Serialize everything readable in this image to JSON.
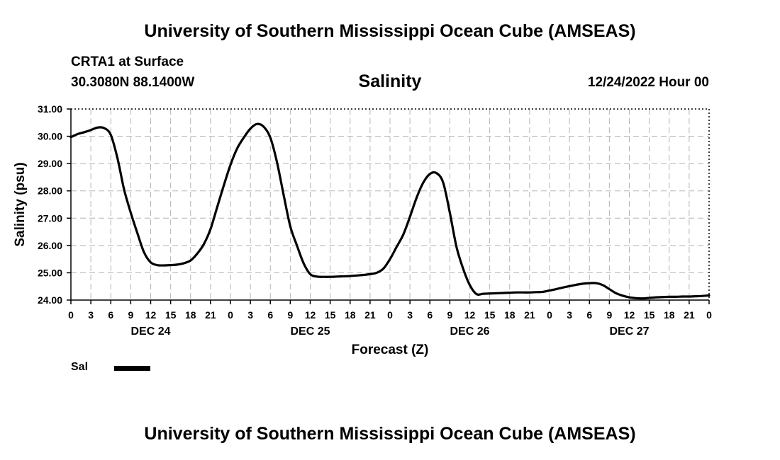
{
  "header": {
    "title_top": "University of Southern Mississippi Ocean Cube (AMSEAS)",
    "station": "CRTA1 at Surface",
    "coords": "30.3080N  88.1400W",
    "variable": "Salinity",
    "datetime": "12/24/2022 Hour 00",
    "title_bottom": "University of Southern Mississippi Ocean Cube (AMSEAS)"
  },
  "legend": {
    "label": "Sal",
    "line_color": "#000000"
  },
  "chart_data": {
    "type": "line",
    "title": "Salinity",
    "xlabel": "Forecast (Z)",
    "ylabel": "Salinity (psu)",
    "ylim": [
      24.0,
      31.0
    ],
    "xlim": [
      0,
      96
    ],
    "grid": true,
    "yticks": [
      "24.00",
      "25.00",
      "26.00",
      "27.00",
      "28.00",
      "29.00",
      "30.00",
      "31.00"
    ],
    "xtick_labels": [
      "0",
      "3",
      "6",
      "9",
      "12",
      "15",
      "18",
      "21",
      "0",
      "3",
      "6",
      "9",
      "12",
      "15",
      "18",
      "21",
      "0",
      "3",
      "6",
      "9",
      "12",
      "15",
      "18",
      "21",
      "0",
      "3",
      "6",
      "9",
      "12",
      "15",
      "18",
      "21",
      "0"
    ],
    "day_labels": [
      {
        "label": "DEC 24",
        "hour": 12
      },
      {
        "label": "DEC 25",
        "hour": 36
      },
      {
        "label": "DEC 26",
        "hour": 60
      },
      {
        "label": "DEC 27",
        "hour": 84
      }
    ],
    "series": [
      {
        "name": "Sal",
        "x": [
          0,
          1,
          2,
          3,
          4,
          5,
          6,
          7,
          8,
          9,
          10,
          11,
          12,
          13,
          14,
          15,
          16,
          17,
          18,
          19,
          20,
          21,
          22,
          23,
          24,
          25,
          26,
          27,
          28,
          29,
          30,
          31,
          32,
          33,
          34,
          35,
          36,
          37,
          38,
          39,
          40,
          41,
          42,
          43,
          44,
          45,
          46,
          47,
          48,
          49,
          50,
          51,
          52,
          53,
          54,
          55,
          56,
          57,
          58,
          59,
          60,
          61,
          62,
          63,
          64,
          65,
          66,
          67,
          68,
          69,
          70,
          71,
          72,
          73,
          74,
          75,
          76,
          77,
          78,
          79,
          80,
          81,
          82,
          83,
          84,
          85,
          86,
          87,
          88,
          89,
          90,
          91,
          92,
          93,
          94,
          95,
          96
        ],
        "values": [
          29.97,
          30.08,
          30.15,
          30.23,
          30.32,
          30.3,
          30.05,
          29.2,
          28.05,
          27.2,
          26.45,
          25.75,
          25.38,
          25.28,
          25.27,
          25.28,
          25.3,
          25.35,
          25.45,
          25.7,
          26.05,
          26.6,
          27.4,
          28.2,
          28.95,
          29.55,
          29.95,
          30.28,
          30.45,
          30.35,
          29.95,
          29.05,
          27.85,
          26.7,
          26.0,
          25.35,
          24.95,
          24.86,
          24.85,
          24.85,
          24.86,
          24.87,
          24.88,
          24.9,
          24.92,
          24.95,
          25.0,
          25.15,
          25.5,
          25.95,
          26.4,
          27.05,
          27.75,
          28.3,
          28.62,
          28.65,
          28.3,
          27.2,
          25.95,
          25.15,
          24.55,
          24.22,
          24.23,
          24.24,
          24.25,
          24.26,
          24.27,
          24.28,
          24.28,
          24.28,
          24.29,
          24.3,
          24.35,
          24.4,
          24.46,
          24.51,
          24.56,
          24.6,
          24.62,
          24.62,
          24.55,
          24.4,
          24.25,
          24.16,
          24.1,
          24.07,
          24.06,
          24.08,
          24.1,
          24.11,
          24.12,
          24.12,
          24.13,
          24.13,
          24.14,
          24.15,
          24.17
        ]
      }
    ]
  }
}
